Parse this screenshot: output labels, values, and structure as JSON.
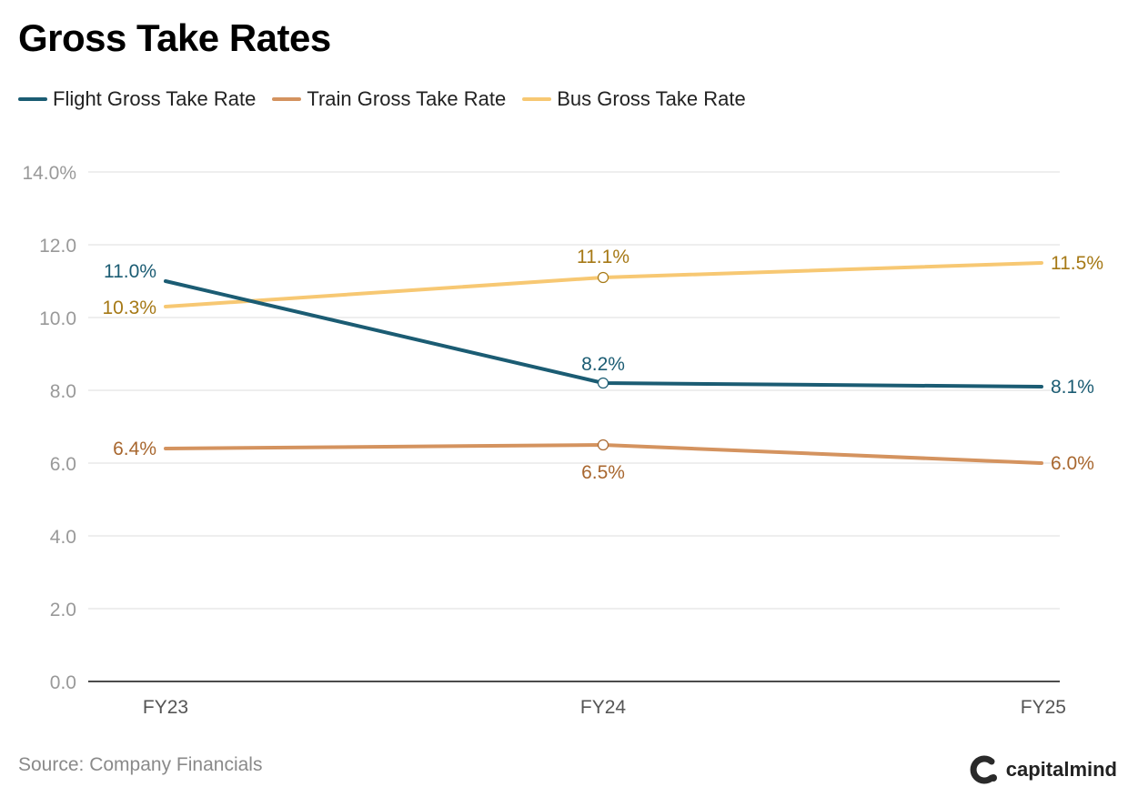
{
  "title": "Gross Take Rates",
  "source": "Source: Company Financials",
  "brand": "capitalmind",
  "chart_data": {
    "type": "line",
    "title": "Gross Take Rates",
    "x": [
      "FY23",
      "FY24",
      "FY25"
    ],
    "ylim": [
      0,
      14
    ],
    "yticks": [
      "0.0",
      "2.0",
      "4.0",
      "6.0",
      "8.0",
      "10.0",
      "12.0",
      "14.0%"
    ],
    "grid": true,
    "legend": "top-left",
    "series": [
      {
        "name": "Flight Gross Take Rate",
        "color": "#1b5c73",
        "label_color": "#1b5c73",
        "values": [
          11.0,
          8.2,
          8.1
        ],
        "labels": [
          "11.0%",
          "8.2%",
          "8.1%"
        ]
      },
      {
        "name": "Train Gross Take Rate",
        "color": "#d4935f",
        "label_color": "#a8672f",
        "values": [
          6.4,
          6.5,
          6.0
        ],
        "labels": [
          "6.4%",
          "6.5%",
          "6.0%"
        ]
      },
      {
        "name": "Bus Gross Take Rate",
        "color": "#f7c873",
        "label_color": "#a67916",
        "values": [
          10.3,
          11.1,
          11.5
        ],
        "labels": [
          "10.3%",
          "11.1%",
          "11.5%"
        ]
      }
    ]
  }
}
